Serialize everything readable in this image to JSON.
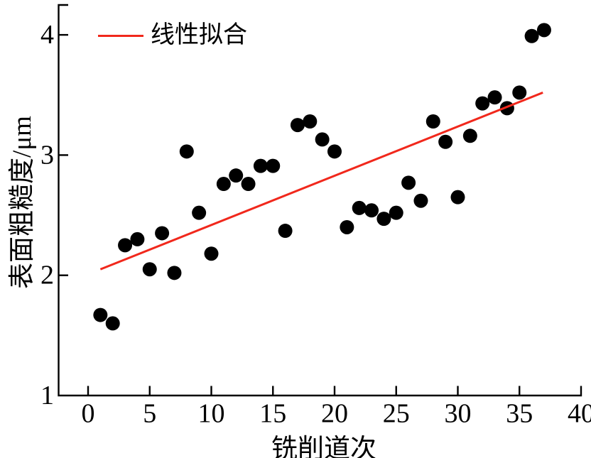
{
  "chart": {
    "legend": {
      "label": "线性拟合",
      "line_color": "#f1281c"
    },
    "xlabel": "铣削道次",
    "ylabel": "表面粗糙度/μm"
  },
  "chart_data": {
    "type": "scatter",
    "title": "",
    "xlabel": "铣削道次",
    "ylabel": "表面粗糙度/μm",
    "xlim": [
      -2.4,
      40
    ],
    "ylim": [
      1,
      4.25
    ],
    "x_ticks": [
      0,
      5,
      10,
      15,
      20,
      25,
      30,
      35,
      40
    ],
    "y_ticks": [
      1,
      2,
      3,
      4
    ],
    "grid": false,
    "legend_position": "top-left-inside",
    "point_color": "#000000",
    "fit_color": "#f1281c",
    "series": [
      {
        "name": "表面粗糙度",
        "type": "scatter",
        "color": "#000000",
        "x": [
          1,
          2,
          3,
          4,
          5,
          6,
          7,
          8,
          9,
          10,
          11,
          12,
          13,
          14,
          15,
          16,
          17,
          18,
          19,
          20,
          21,
          22,
          23,
          24,
          25,
          26,
          27,
          28,
          29,
          30,
          31,
          32,
          33,
          34,
          35,
          36,
          37
        ],
        "y": [
          1.67,
          1.6,
          2.25,
          2.3,
          2.05,
          2.35,
          2.02,
          3.03,
          2.52,
          2.18,
          2.76,
          2.83,
          2.76,
          2.91,
          2.91,
          2.37,
          3.25,
          3.28,
          3.13,
          3.03,
          2.4,
          2.56,
          2.54,
          2.47,
          2.52,
          2.77,
          2.62,
          3.28,
          3.11,
          2.65,
          3.16,
          3.43,
          3.48,
          3.39,
          3.52,
          3.99,
          4.04
        ]
      },
      {
        "name": "线性拟合",
        "type": "line",
        "color": "#f1281c",
        "x": [
          1.0,
          36.9
        ],
        "y": [
          2.05,
          3.52
        ]
      }
    ]
  }
}
